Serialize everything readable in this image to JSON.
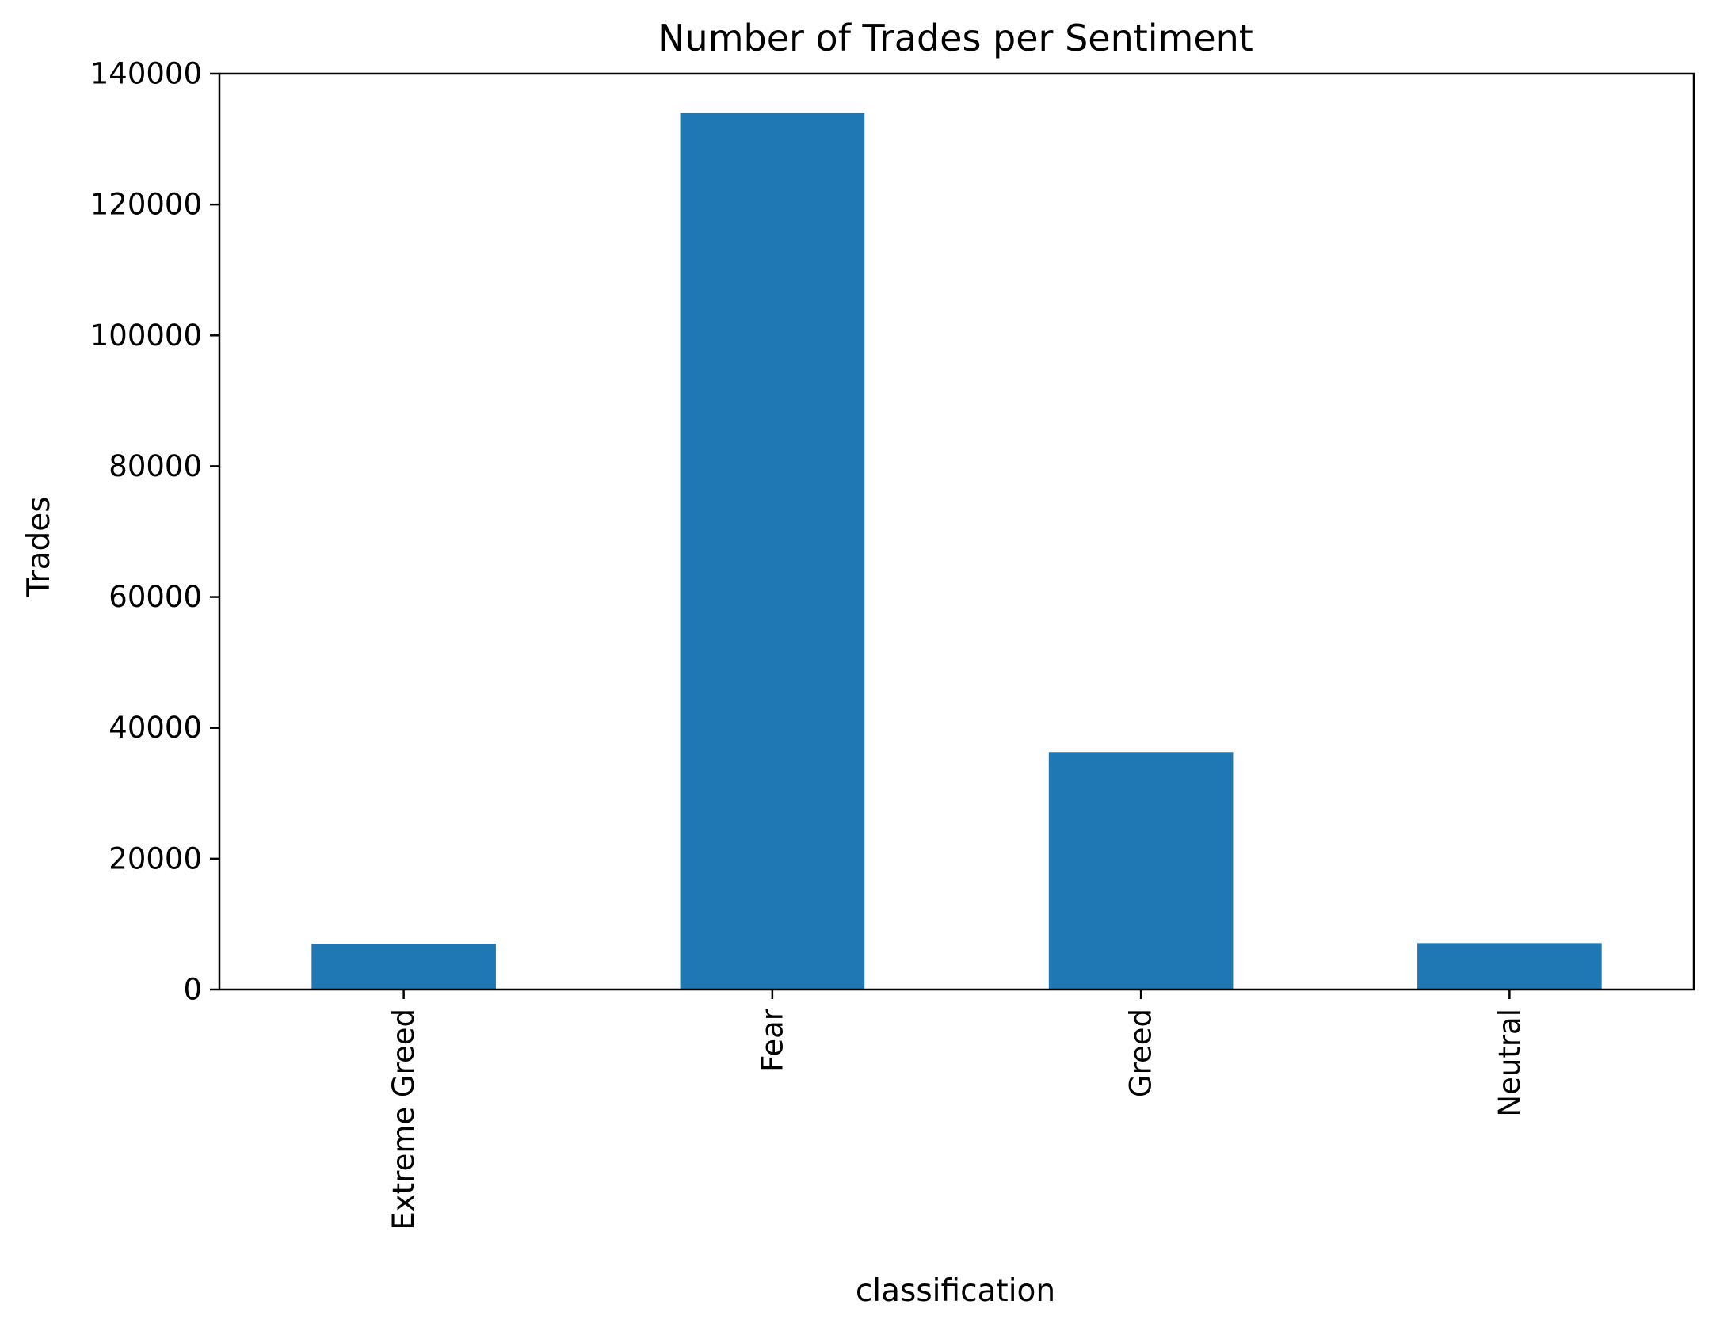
{
  "chart_data": {
    "type": "bar",
    "title": "Number of Trades per Sentiment",
    "xlabel": "classification",
    "ylabel": "Trades",
    "categories": [
      "Extreme Greed",
      "Fear",
      "Greed",
      "Neutral"
    ],
    "values": [
      7000,
      134000,
      36300,
      7100
    ],
    "ylim": [
      0,
      140000
    ],
    "yticks": [
      0,
      20000,
      40000,
      60000,
      80000,
      100000,
      120000,
      140000
    ],
    "ytick_labels": [
      "0",
      "20000",
      "40000",
      "60000",
      "80000",
      "100000",
      "120000",
      "140000"
    ],
    "grid": false,
    "legend": "none",
    "bar_color": "#1f77b4"
  }
}
